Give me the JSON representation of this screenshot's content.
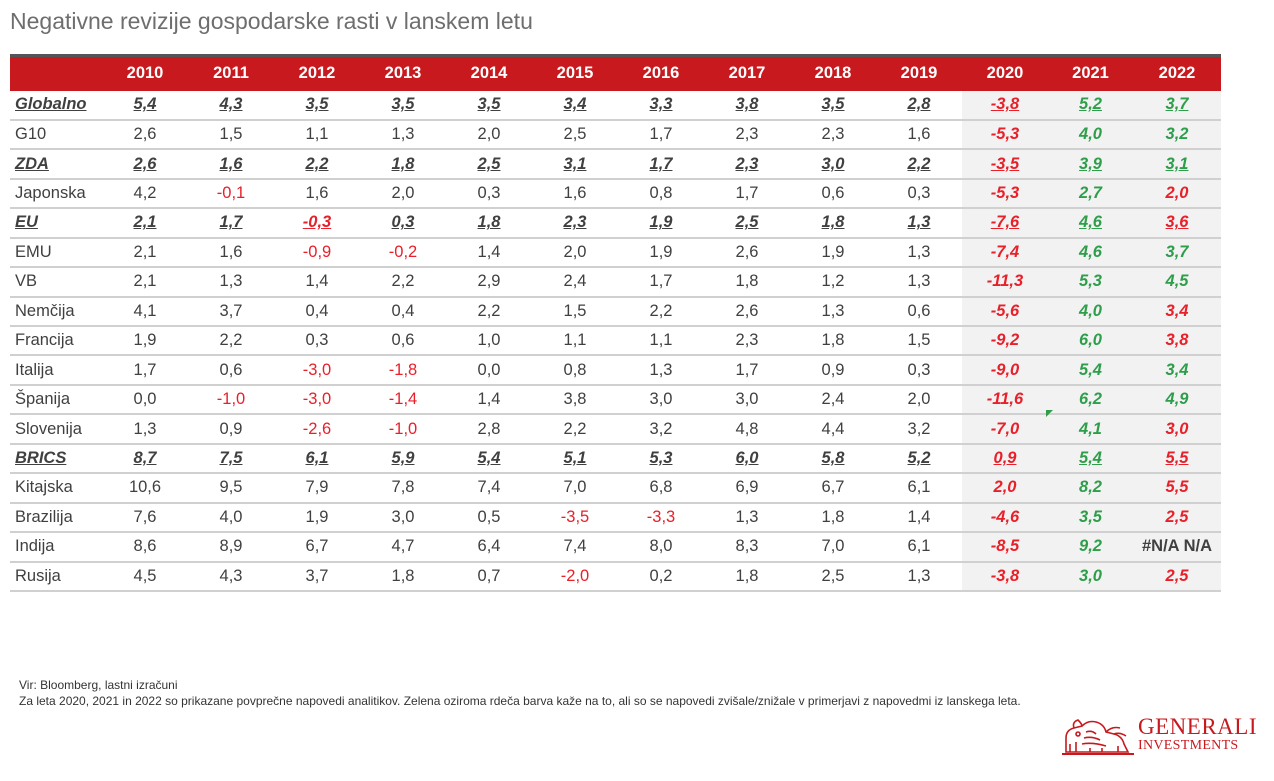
{
  "title": "Negativne revizije gospodarske rasti v lanskem letu",
  "table": {
    "headers": [
      "",
      "2010",
      "2011",
      "2012",
      "2013",
      "2014",
      "2015",
      "2016",
      "2017",
      "2018",
      "2019",
      "2020",
      "2021",
      "2022"
    ],
    "rows": [
      {
        "label": "Globalno",
        "agg": true,
        "values": [
          "5,4",
          "4,3",
          "3,5",
          "3,5",
          "3,5",
          "3,4",
          "3,3",
          "3,8",
          "3,5",
          "2,8"
        ],
        "forecast": [
          "-3,8",
          "5,2",
          "3,7"
        ],
        "f22_color": "green"
      },
      {
        "label": "G10",
        "agg": false,
        "values": [
          "2,6",
          "1,5",
          "1,1",
          "1,3",
          "2,0",
          "2,5",
          "1,7",
          "2,3",
          "2,3",
          "1,6"
        ],
        "forecast": [
          "-5,3",
          "4,0",
          "3,2"
        ],
        "f22_color": "green"
      },
      {
        "label": "ZDA",
        "agg": true,
        "values": [
          "2,6",
          "1,6",
          "2,2",
          "1,8",
          "2,5",
          "3,1",
          "1,7",
          "2,3",
          "3,0",
          "2,2"
        ],
        "forecast": [
          "-3,5",
          "3,9",
          "3,1"
        ],
        "f22_color": "green"
      },
      {
        "label": "Japonska",
        "agg": false,
        "values": [
          "4,2",
          "-0,1",
          "1,6",
          "2,0",
          "0,3",
          "1,6",
          "0,8",
          "1,7",
          "0,6",
          "0,3"
        ],
        "forecast": [
          "-5,3",
          "2,7",
          "2,0"
        ],
        "f22_color": "red"
      },
      {
        "label": "EU",
        "agg": true,
        "values": [
          "2,1",
          "1,7",
          "-0,3",
          "0,3",
          "1,8",
          "2,3",
          "1,9",
          "2,5",
          "1,8",
          "1,3"
        ],
        "forecast": [
          "-7,6",
          "4,6",
          "3,6"
        ],
        "f22_color": "red"
      },
      {
        "label": "EMU",
        "agg": false,
        "values": [
          "2,1",
          "1,6",
          "-0,9",
          "-0,2",
          "1,4",
          "2,0",
          "1,9",
          "2,6",
          "1,9",
          "1,3"
        ],
        "forecast": [
          "-7,4",
          "4,6",
          "3,7"
        ],
        "f22_color": "green"
      },
      {
        "label": "VB",
        "agg": false,
        "values": [
          "2,1",
          "1,3",
          "1,4",
          "2,2",
          "2,9",
          "2,4",
          "1,7",
          "1,8",
          "1,2",
          "1,3"
        ],
        "forecast": [
          "-11,3",
          "5,3",
          "4,5"
        ],
        "f22_color": "green"
      },
      {
        "label": "Nemčija",
        "agg": false,
        "values": [
          "4,1",
          "3,7",
          "0,4",
          "0,4",
          "2,2",
          "1,5",
          "2,2",
          "2,6",
          "1,3",
          "0,6"
        ],
        "forecast": [
          "-5,6",
          "4,0",
          "3,4"
        ],
        "f22_color": "red"
      },
      {
        "label": "Francija",
        "agg": false,
        "values": [
          "1,9",
          "2,2",
          "0,3",
          "0,6",
          "1,0",
          "1,1",
          "1,1",
          "2,3",
          "1,8",
          "1,5"
        ],
        "forecast": [
          "-9,2",
          "6,0",
          "3,8"
        ],
        "f22_color": "red"
      },
      {
        "label": "Italija",
        "agg": false,
        "values": [
          "1,7",
          "0,6",
          "-3,0",
          "-1,8",
          "0,0",
          "0,8",
          "1,3",
          "1,7",
          "0,9",
          "0,3"
        ],
        "forecast": [
          "-9,0",
          "5,4",
          "3,4"
        ],
        "f22_color": "green"
      },
      {
        "label": "Španija",
        "agg": false,
        "values": [
          "0,0",
          "-1,0",
          "-3,0",
          "-1,4",
          "1,4",
          "3,8",
          "3,0",
          "3,0",
          "2,4",
          "2,0"
        ],
        "forecast": [
          "-11,6",
          "6,2",
          "4,9"
        ],
        "f22_color": "green"
      },
      {
        "label": "Slovenija",
        "agg": false,
        "values": [
          "1,3",
          "0,9",
          "-2,6",
          "-1,0",
          "2,8",
          "2,2",
          "3,2",
          "4,8",
          "4,4",
          "3,2"
        ],
        "forecast": [
          "-7,0",
          "4,1",
          "3,0"
        ],
        "f22_color": "red"
      },
      {
        "label": "BRICS",
        "agg": true,
        "values": [
          "8,7",
          "7,5",
          "6,1",
          "5,9",
          "5,4",
          "5,1",
          "5,3",
          "6,0",
          "5,8",
          "5,2"
        ],
        "forecast": [
          "0,9",
          "5,4",
          "5,5"
        ],
        "f22_color": "red"
      },
      {
        "label": "Kitajska",
        "agg": false,
        "values": [
          "10,6",
          "9,5",
          "7,9",
          "7,8",
          "7,4",
          "7,0",
          "6,8",
          "6,9",
          "6,7",
          "6,1"
        ],
        "forecast": [
          "2,0",
          "8,2",
          "5,5"
        ],
        "f22_color": "red"
      },
      {
        "label": "Brazilija",
        "agg": false,
        "values": [
          "7,6",
          "4,0",
          "1,9",
          "3,0",
          "0,5",
          "-3,5",
          "-3,3",
          "1,3",
          "1,8",
          "1,4"
        ],
        "forecast": [
          "-4,6",
          "3,5",
          "2,5"
        ],
        "f22_color": "red"
      },
      {
        "label": "Indija",
        "agg": false,
        "values": [
          "8,6",
          "8,9",
          "6,7",
          "4,7",
          "6,4",
          "7,4",
          "8,0",
          "8,3",
          "7,0",
          "6,1"
        ],
        "forecast": [
          "-8,5",
          "9,2",
          "#N/A N/A"
        ],
        "f22_color": "na"
      },
      {
        "label": "Rusija",
        "agg": false,
        "values": [
          "4,5",
          "4,3",
          "3,7",
          "1,8",
          "0,7",
          "-2,0",
          "0,2",
          "1,8",
          "2,5",
          "1,3"
        ],
        "forecast": [
          "-3,8",
          "3,0",
          "2,5"
        ],
        "f22_color": "red"
      }
    ]
  },
  "colors": {
    "header_bg": "#c8191e",
    "negative": "#e8202a",
    "positive_forecast": "#2e9e4a",
    "forecast_bg": "#f2f2f2"
  },
  "footnote": {
    "source": "Vir: Bloomberg, lastni izračuni",
    "note": "Za leta 2020, 2021 in 2022 so prikazane povprečne napovedi analitikov. Zelena oziroma rdeča barva kaže na to, ali so se napovedi zvišale/znižale v primerjavi z napovedmi iz lanskega leta."
  },
  "logo": {
    "line1": "GENERALI",
    "line2": "INVESTMENTS"
  }
}
